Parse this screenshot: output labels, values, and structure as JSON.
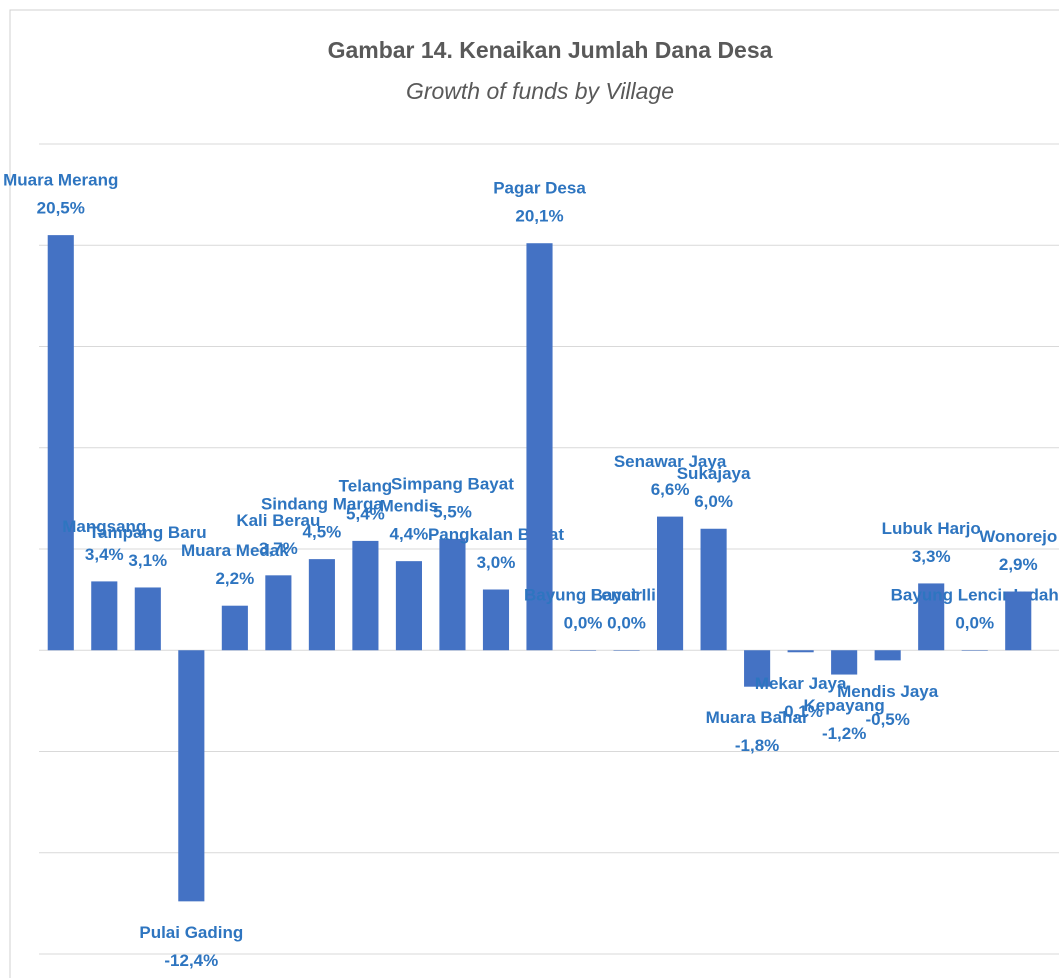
{
  "chart_data": {
    "type": "bar",
    "title": "Gambar 14. Kenaikan Jumlah Dana Desa",
    "subtitle": "Growth of funds by Village",
    "categories": [
      "Muara Merang",
      "Mangsang",
      "Tampang Baru",
      "Pulai Gading",
      "Muara Medak",
      "Kali Berau",
      "Sindang Marga",
      "Telang",
      "Mendis",
      "Simpang Bayat",
      "Pangkalan Bayat",
      "Pagar Desa",
      "Bayung Lencir",
      "Bayat Ilir",
      "Senawar Jaya",
      "Sukajaya",
      "Muara Bahar",
      "Mekar Jaya",
      "Kepayang",
      "Mendis Jaya",
      "Lubuk Harjo",
      "Bayung Lencir Indah",
      "Wonorejo"
    ],
    "values": [
      20.5,
      3.4,
      3.1,
      -12.4,
      2.2,
      3.7,
      4.5,
      5.4,
      4.4,
      5.5,
      3.0,
      20.1,
      0.0,
      0.0,
      6.6,
      6.0,
      -1.8,
      -0.1,
      -1.2,
      -0.5,
      3.3,
      0.0,
      2.9
    ],
    "value_labels": [
      "20,5%",
      "3,4%",
      "3,1%",
      "-12,4%",
      "2,2%",
      "3,7%",
      "4,5%",
      "5,4%",
      "4,4%",
      "5,5%",
      "3,0%",
      "20,1%",
      "0,0%",
      "0,0%",
      "6,6%",
      "6,0%",
      "-1,8%",
      "-0,1%",
      "-1,2%",
      "-0,5%",
      "3,3%",
      "0,0%",
      "2,9%"
    ],
    "color": "#4472c4",
    "ylim": [
      -15,
      25
    ],
    "yticks": [
      -15,
      -10,
      -5,
      0,
      5,
      10,
      15,
      20,
      25
    ],
    "grid": true
  }
}
